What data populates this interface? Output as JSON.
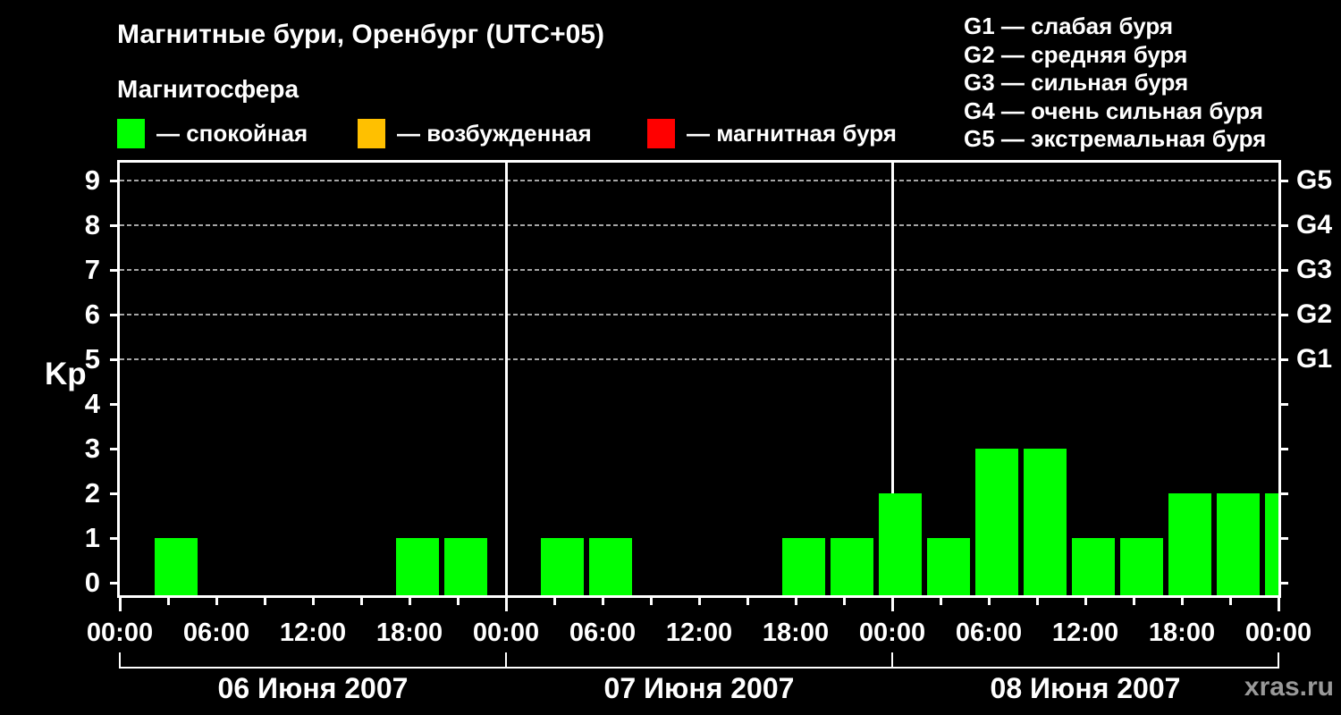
{
  "header": {
    "title": "Магнитные бури, Оренбург (UTC+05)",
    "subtitle": "Магнитосфера"
  },
  "state_legend": [
    {
      "label": "— спокойная",
      "color": "#00ff00"
    },
    {
      "label": "— возбужденная",
      "color": "#ffc000"
    },
    {
      "label": "— магнитная буря",
      "color": "#ff0000"
    }
  ],
  "storm_scale_legend": [
    "G1 — слабая буря",
    "G2 — средняя буря",
    "G3 — сильная буря",
    "G4 — очень сильная буря",
    "G5 — экстремальная буря"
  ],
  "watermark": "xras.ru",
  "chart_data": {
    "type": "bar",
    "title": "Магнитные бури, Оренбург (UTC+05)",
    "ylabel": "Kp",
    "ylim": [
      0,
      9
    ],
    "yticks": [
      0,
      1,
      2,
      3,
      4,
      5,
      6,
      7,
      8,
      9
    ],
    "grid_levels": [
      5,
      6,
      7,
      8,
      9
    ],
    "grid_color": "#a6a6a6",
    "bar_color": "#00ff00",
    "slot_hours": 3,
    "x_hour_labels": [
      "00:00",
      "06:00",
      "12:00",
      "18:00"
    ],
    "right_axis": [
      {
        "kp": 5,
        "label": "G1"
      },
      {
        "kp": 6,
        "label": "G2"
      },
      {
        "kp": 7,
        "label": "G3"
      },
      {
        "kp": 8,
        "label": "G4"
      },
      {
        "kp": 9,
        "label": "G5"
      }
    ],
    "days": [
      {
        "date": "06 Июня 2007",
        "bars": [
          {
            "start_hour": 2,
            "kp": 1
          },
          {
            "start_hour": 17,
            "kp": 1
          },
          {
            "start_hour": 20,
            "kp": 1
          }
        ]
      },
      {
        "date": "07 Июня 2007",
        "bars": [
          {
            "start_hour": 2,
            "kp": 1
          },
          {
            "start_hour": 5,
            "kp": 1
          },
          {
            "start_hour": 17,
            "kp": 1
          },
          {
            "start_hour": 20,
            "kp": 1
          },
          {
            "start_hour": 23,
            "kp": 2
          }
        ]
      },
      {
        "date": "08 Июня 2007",
        "bars": [
          {
            "start_hour": 2,
            "kp": 1
          },
          {
            "start_hour": 5,
            "kp": 3
          },
          {
            "start_hour": 8,
            "kp": 3
          },
          {
            "start_hour": 11,
            "kp": 1
          },
          {
            "start_hour": 14,
            "kp": 1
          },
          {
            "start_hour": 17,
            "kp": 2
          },
          {
            "start_hour": 20,
            "kp": 2
          },
          {
            "start_hour": 23,
            "kp": 2
          }
        ]
      }
    ]
  }
}
